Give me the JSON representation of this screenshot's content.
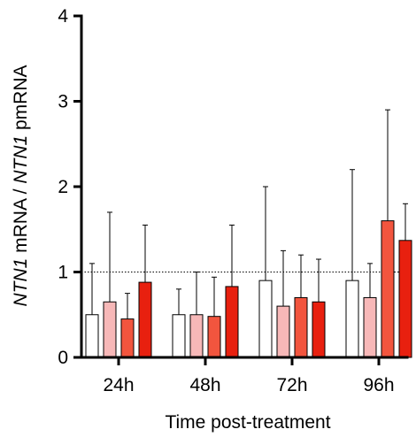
{
  "chart_data": {
    "type": "bar",
    "categories": [
      "24h",
      "48h",
      "72h",
      "96h"
    ],
    "series": [
      {
        "color": "#ffffff",
        "values": [
          0.5,
          0.5,
          0.9,
          0.9
        ],
        "errors": [
          1.1,
          0.8,
          2.0,
          2.2
        ]
      },
      {
        "color": "#f7b8b8",
        "values": [
          0.65,
          0.5,
          0.6,
          0.7
        ],
        "errors": [
          1.7,
          1.0,
          1.25,
          1.1
        ]
      },
      {
        "color": "#f2553e",
        "values": [
          0.45,
          0.48,
          0.7,
          1.6
        ],
        "errors": [
          0.75,
          0.94,
          1.2,
          2.9
        ]
      },
      {
        "color": "#e8200f",
        "values": [
          0.88,
          0.83,
          0.65,
          1.37
        ],
        "errors": [
          1.55,
          1.55,
          1.15,
          1.8
        ]
      }
    ],
    "ylim": [
      0,
      4
    ],
    "yticks": [
      "0",
      "1",
      "2",
      "3",
      "4"
    ],
    "reference_line": 1,
    "ylabel_parts": [
      {
        "text": "NTN1",
        "italic": true
      },
      {
        "text": " mRNA / ",
        "italic": false
      },
      {
        "text": "NTN1",
        "italic": true
      },
      {
        "text": " pmRNA",
        "italic": false
      }
    ],
    "xlabel": "Time post-treatment"
  }
}
